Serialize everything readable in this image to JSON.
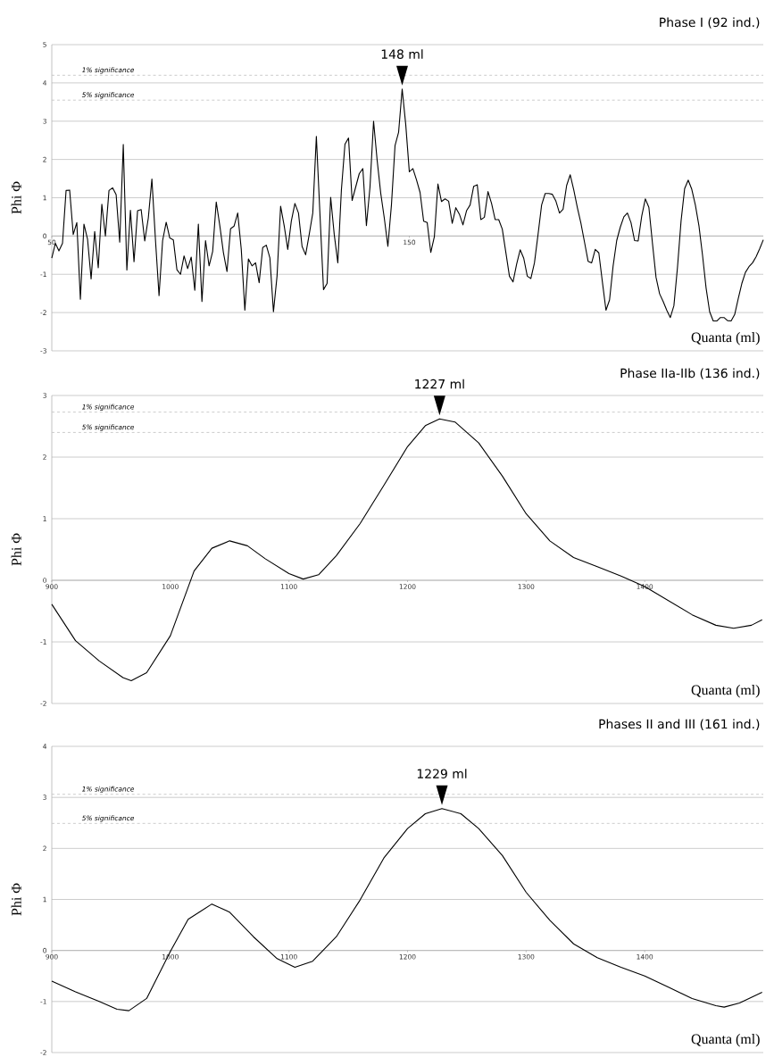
{
  "chart_data": [
    {
      "type": "line",
      "title": "Phase I (92 ind.)",
      "xlabel": "Quanta (ml)",
      "ylabel": "Phi Φ",
      "x": [
        50,
        51,
        52,
        53,
        54,
        55,
        56,
        57,
        58,
        59,
        60,
        61,
        62,
        63,
        64,
        65,
        66,
        67,
        68,
        69,
        70,
        71,
        72,
        73,
        74,
        75,
        76,
        77,
        78,
        79,
        80,
        81,
        82,
        83,
        84,
        85,
        86,
        87,
        88,
        89,
        90,
        91,
        92,
        93,
        94,
        95,
        96,
        97,
        98,
        99,
        100,
        101,
        102,
        103,
        104,
        105,
        106,
        107,
        108,
        109,
        110,
        111,
        112,
        113,
        114,
        115,
        116,
        117,
        118,
        119,
        120,
        121,
        122,
        123,
        124,
        125,
        126,
        127,
        128,
        129,
        130,
        131,
        132,
        133,
        134,
        135,
        136,
        137,
        138,
        139,
        140,
        141,
        142,
        143,
        144,
        145,
        146,
        147,
        148,
        149,
        150,
        151,
        152,
        153,
        154,
        155,
        156,
        157,
        158,
        159,
        160,
        161,
        162,
        163,
        164,
        165,
        166,
        167,
        168,
        169,
        170,
        171,
        172,
        173,
        174,
        175,
        176,
        177,
        178,
        179,
        180,
        181,
        182,
        183,
        184,
        185,
        186,
        187,
        188,
        189,
        190,
        191,
        192,
        193,
        194,
        195,
        196,
        197,
        198,
        199,
        200,
        201,
        202,
        203,
        204,
        205,
        206,
        207,
        208,
        209,
        210,
        211,
        212,
        213,
        214,
        215,
        216,
        217,
        218,
        219,
        220,
        221,
        222,
        223,
        224,
        225,
        226,
        227,
        228,
        229,
        230,
        231,
        232,
        233,
        234,
        235,
        236,
        237,
        238,
        239,
        240,
        241,
        242,
        243,
        244,
        245,
        246,
        247,
        248,
        249
      ],
      "series": [
        {
          "color": "#000000",
          "values": [
            -0.58,
            -0.19,
            -0.39,
            -0.19,
            1.19,
            1.2,
            0.04,
            0.35,
            -1.65,
            0.31,
            -0.08,
            -1.12,
            0.12,
            -0.83,
            0.83,
            0.0,
            1.19,
            1.26,
            1.08,
            -0.16,
            2.39,
            -0.89,
            0.67,
            -0.67,
            0.66,
            0.69,
            -0.13,
            0.47,
            1.49,
            -0.1,
            -1.56,
            -0.12,
            0.36,
            -0.05,
            -0.1,
            -0.88,
            -1.0,
            -0.52,
            -0.85,
            -0.55,
            -1.42,
            0.31,
            -1.71,
            -0.12,
            -0.78,
            -0.4,
            0.89,
            0.27,
            -0.43,
            -0.93,
            0.19,
            0.26,
            0.6,
            -0.35,
            -1.94,
            -0.6,
            -0.78,
            -0.7,
            -1.22,
            -0.3,
            -0.24,
            -0.57,
            -1.98,
            -1.05,
            0.78,
            0.27,
            -0.35,
            0.39,
            0.85,
            0.6,
            -0.27,
            -0.49,
            0.04,
            0.6,
            2.6,
            0.58,
            -1.4,
            -1.24,
            1.01,
            0.04,
            -0.7,
            1.2,
            2.4,
            2.56,
            0.93,
            1.28,
            1.63,
            1.76,
            0.27,
            1.28,
            3.0,
            1.98,
            1.12,
            0.47,
            -0.27,
            0.81,
            2.36,
            2.71,
            3.84,
            2.91,
            1.68,
            1.76,
            1.47,
            1.14,
            0.39,
            0.35,
            -0.43,
            -0.02,
            1.36,
            0.9,
            0.97,
            0.91,
            0.33,
            0.74,
            0.57,
            0.29,
            0.66,
            0.81,
            1.3,
            1.34,
            0.43,
            0.49,
            1.16,
            0.85,
            0.43,
            0.43,
            0.18,
            -0.43,
            -1.05,
            -1.2,
            -0.74,
            -0.36,
            -0.58,
            -1.05,
            -1.11,
            -0.7,
            0.04,
            0.81,
            1.11,
            1.11,
            1.09,
            0.91,
            0.6,
            0.7,
            1.32,
            1.6,
            1.2,
            0.74,
            0.33,
            -0.16,
            -0.66,
            -0.7,
            -0.35,
            -0.44,
            -1.2,
            -1.94,
            -1.67,
            -0.78,
            -0.12,
            0.23,
            0.5,
            0.6,
            0.35,
            -0.12,
            -0.13,
            0.52,
            0.97,
            0.75,
            -0.19,
            -1.08,
            -1.51,
            -1.71,
            -1.94,
            -2.13,
            -1.82,
            -0.82,
            0.39,
            1.24,
            1.46,
            1.22,
            0.81,
            0.27,
            -0.5,
            -1.36,
            -1.98,
            -2.22,
            -2.22,
            -2.13,
            -2.13,
            -2.21,
            -2.22,
            -2.05,
            -1.63,
            -1.24,
            -0.95,
            -0.8,
            -0.7,
            -0.54,
            -0.33,
            -0.1
          ]
        }
      ],
      "xlim": [
        50,
        249
      ],
      "ylim": [
        -3,
        5
      ],
      "xticks": [
        50,
        150
      ],
      "yticks": [
        -3,
        -2,
        -1,
        0,
        1,
        2,
        3,
        4,
        5
      ],
      "grid": "y",
      "ref_lines": [
        {
          "axis": "y",
          "value": 4.2,
          "label": "1%  significance",
          "color": "#bfbfbf",
          "line_style": "dashed"
        },
        {
          "axis": "y",
          "value": 3.55,
          "label": "5%  significance",
          "color": "#bfbfbf",
          "line_style": "dashed"
        }
      ],
      "annotations": [
        {
          "text": "148 ml",
          "x": 148,
          "y": 3.84
        }
      ]
    },
    {
      "type": "line",
      "title": "Phase IIa-IIb (136 ind.)",
      "xlabel": "Quanta (ml)",
      "ylabel": "Phi Φ",
      "x": [
        900,
        920,
        940,
        960,
        967,
        980,
        1000,
        1020,
        1035,
        1050,
        1065,
        1080,
        1100,
        1112,
        1125,
        1140,
        1160,
        1180,
        1200,
        1215,
        1227,
        1240,
        1260,
        1280,
        1300,
        1320,
        1340,
        1360,
        1380,
        1400,
        1420,
        1440,
        1460,
        1475,
        1490,
        1499
      ],
      "series": [
        {
          "color": "#000000",
          "values": [
            -0.39,
            -0.98,
            -1.31,
            -1.58,
            -1.63,
            -1.5,
            -0.9,
            0.15,
            0.52,
            0.64,
            0.56,
            0.35,
            0.11,
            0.02,
            0.09,
            0.4,
            0.92,
            1.54,
            2.17,
            2.51,
            2.62,
            2.57,
            2.23,
            1.69,
            1.08,
            0.64,
            0.37,
            0.22,
            0.07,
            -0.1,
            -0.33,
            -0.56,
            -0.73,
            -0.78,
            -0.73,
            -0.64
          ]
        }
      ],
      "xlim": [
        900,
        1500
      ],
      "ylim": [
        -2,
        3
      ],
      "xticks": [
        900,
        1000,
        1100,
        1200,
        1300,
        1400
      ],
      "yticks": [
        -2,
        -1,
        0,
        1,
        2,
        3
      ],
      "grid": "y",
      "ref_lines": [
        {
          "axis": "y",
          "value": 2.73,
          "label": "1%  significance",
          "color": "#bfbfbf",
          "line_style": "dashed"
        },
        {
          "axis": "y",
          "value": 2.4,
          "label": "5%  significance",
          "color": "#bfbfbf",
          "line_style": "dashed"
        }
      ],
      "annotations": [
        {
          "text": "1227 ml",
          "x": 1227,
          "y": 2.62
        }
      ]
    },
    {
      "type": "line",
      "title": "Phases II and III (161 ind.)",
      "xlabel": "Quanta (ml)",
      "ylabel": "Phi Φ",
      "x": [
        900,
        920,
        940,
        955,
        965,
        980,
        1000,
        1015,
        1035,
        1050,
        1070,
        1090,
        1105,
        1120,
        1140,
        1160,
        1180,
        1200,
        1215,
        1229,
        1245,
        1260,
        1280,
        1300,
        1320,
        1340,
        1360,
        1380,
        1400,
        1420,
        1440,
        1460,
        1467,
        1480,
        1499
      ],
      "series": [
        {
          "color": "#000000",
          "values": [
            -0.6,
            -0.81,
            -1.0,
            -1.15,
            -1.18,
            -0.94,
            -0.02,
            0.61,
            0.91,
            0.75,
            0.27,
            -0.16,
            -0.33,
            -0.21,
            0.27,
            0.99,
            1.81,
            2.39,
            2.68,
            2.78,
            2.68,
            2.39,
            1.86,
            1.14,
            0.59,
            0.13,
            -0.14,
            -0.33,
            -0.5,
            -0.72,
            -0.94,
            -1.08,
            -1.11,
            -1.03,
            -0.82
          ]
        }
      ],
      "xlim": [
        900,
        1500
      ],
      "ylim": [
        -2,
        4
      ],
      "xticks": [
        900,
        1000,
        1100,
        1200,
        1300,
        1400
      ],
      "yticks": [
        -2,
        -1,
        0,
        1,
        2,
        3,
        4
      ],
      "grid": "y",
      "ref_lines": [
        {
          "axis": "y",
          "value": 3.06,
          "label": "1%  significance",
          "color": "#bfbfbf",
          "line_style": "dashed"
        },
        {
          "axis": "y",
          "value": 2.49,
          "label": "5%  significance",
          "color": "#bfbfbf",
          "line_style": "dashed"
        }
      ],
      "annotations": [
        {
          "text": "1229 ml",
          "x": 1229,
          "y": 2.78
        }
      ]
    }
  ]
}
